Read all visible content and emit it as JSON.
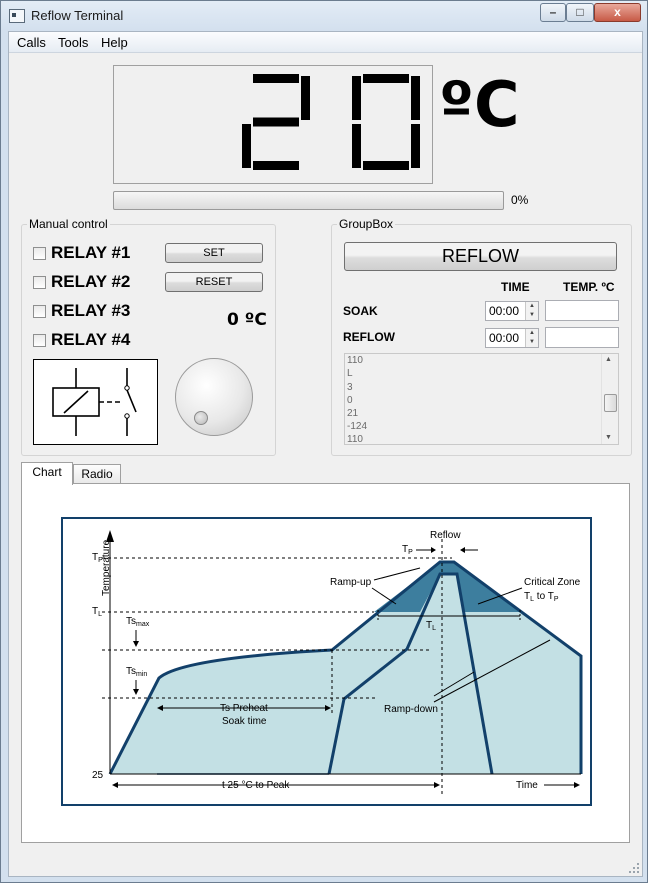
{
  "window": {
    "title": "Reflow Terminal",
    "buttons": {
      "minimize": "–",
      "maximize": "□",
      "close": "x"
    }
  },
  "menu": [
    "Calls",
    "Tools",
    "Help"
  ],
  "display": {
    "temperature": "20",
    "unit": "ºC"
  },
  "progress": {
    "value": 0,
    "label": "0%"
  },
  "manual_control": {
    "title": "Manual control",
    "relays": [
      "RELAY #1",
      "RELAY #2",
      "RELAY #3",
      "RELAY #4"
    ],
    "set_label": "SET",
    "reset_label": "RESET",
    "temperature": "0 ºC"
  },
  "group_box": {
    "title": "GroupBox",
    "reflow_button": "REFLOW",
    "col_time": "TIME",
    "col_temp": "TEMP. ºC",
    "rows": [
      {
        "label": "SOAK",
        "time": "00:00",
        "temp": ""
      },
      {
        "label": "REFLOW",
        "time": "00:00",
        "temp": ""
      }
    ],
    "log": [
      "110",
      "L",
      "3",
      "0",
      "21",
      "-124",
      "110"
    ]
  },
  "tabs": [
    "Chart",
    "Radio"
  ],
  "profile_chart": {
    "y_axis": "Temperature",
    "x_axis": "Time",
    "labels": {
      "tp": "T",
      "tp_sub": "P",
      "tl": "T",
      "tl_sub": "L",
      "tsmax": "Ts",
      "tsmax_sub": "max",
      "tsmin": "Ts",
      "tsmin_sub": "min",
      "t25": "25",
      "reflow": "Reflow",
      "ramp_up": "Ramp-up",
      "critical_zone": "Critical Zone",
      "critical_range_a": "T",
      "critical_range_a_sub": "L",
      "critical_range_to": " to T",
      "critical_range_b_sub": "P",
      "ts_preheat": "Ts Preheat",
      "soak_time": "Soak time",
      "ramp_down": "Ramp-down",
      "t25_to_peak": "t 25 °C to Peak"
    }
  },
  "colors": {
    "progress_fill": "#36b03e",
    "chart_fill": "#c3e0e4",
    "chart_dark": "#3d7e9e",
    "chart_line": "#12406a"
  }
}
